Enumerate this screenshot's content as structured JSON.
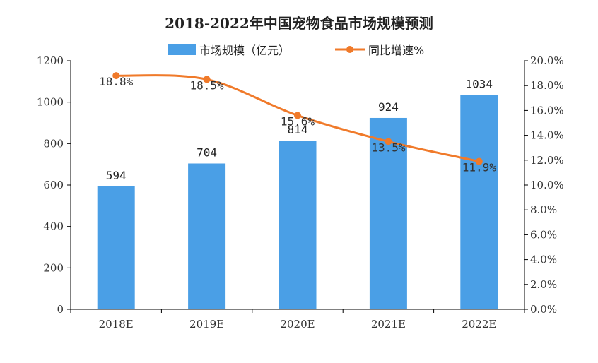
{
  "chart_data": {
    "type": "bar",
    "title": "2018-2022年中国宠物食品市场规模预测",
    "categories": [
      "2018E",
      "2019E",
      "2020E",
      "2021E",
      "2022E"
    ],
    "series": [
      {
        "name": "市场规模（亿元）",
        "chart": "bar",
        "axis": "left",
        "color": "#4a9fe6",
        "values": [
          594,
          704,
          814,
          924,
          1034
        ],
        "labels": [
          "594",
          "704",
          "814",
          "924",
          "1034"
        ]
      },
      {
        "name": "同比增速%",
        "chart": "line",
        "axis": "right",
        "color": "#f07a2a",
        "values": [
          18.8,
          18.5,
          15.6,
          13.5,
          11.9
        ],
        "labels": [
          "18.8%",
          "18.5%",
          "15.6%",
          "13.5%",
          "11.9%"
        ]
      }
    ],
    "y_left": {
      "min": 0,
      "max": 1200,
      "ticks": [
        "0",
        "200",
        "400",
        "600",
        "800",
        "1000",
        "1200"
      ]
    },
    "y_right": {
      "min": 0,
      "max": 20,
      "ticks": [
        "0.0%",
        "2.0%",
        "4.0%",
        "6.0%",
        "8.0%",
        "10.0%",
        "12.0%",
        "14.0%",
        "16.0%",
        "18.0%",
        "20.0%"
      ]
    },
    "legend_position": "top-center",
    "grid": false
  }
}
